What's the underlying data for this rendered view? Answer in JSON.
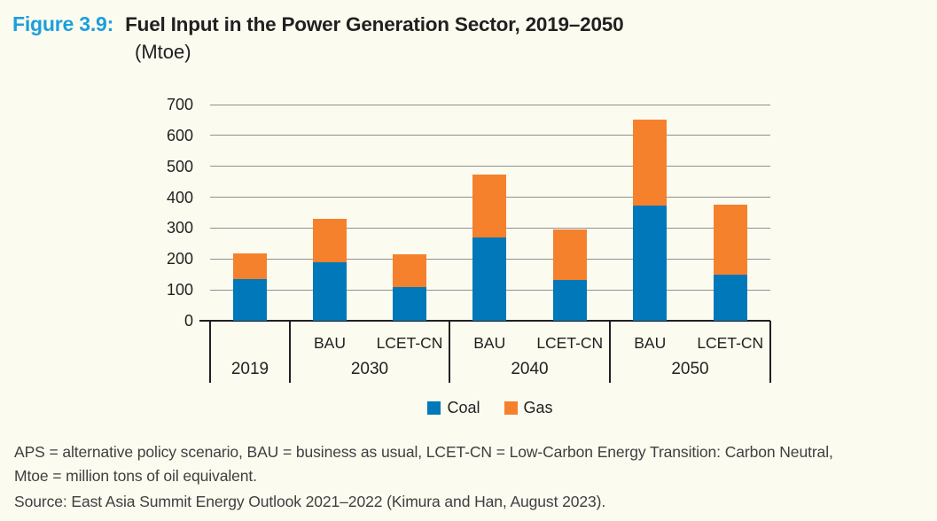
{
  "figure": {
    "label": "Figure 3.9:",
    "title": "Fuel Input in the Power Generation Sector, 2019–2050",
    "subtitle": "(Mtoe)"
  },
  "chart_data": {
    "type": "bar",
    "stacked": true,
    "title": "Fuel Input in the Power Generation Sector, 2019–2050 (Mtoe)",
    "xlabel": "",
    "ylabel": "Mtoe",
    "ylim": [
      0,
      700
    ],
    "yticks": [
      0,
      100,
      200,
      300,
      400,
      500,
      600,
      700
    ],
    "grid": true,
    "legend_position": "bottom",
    "legend": [
      {
        "name": "Coal",
        "color": "#0078b9"
      },
      {
        "name": "Gas",
        "color": "#f5812c"
      }
    ],
    "groups": [
      {
        "year": "2019",
        "bars": [
          {
            "scenario": "",
            "coal": 135,
            "gas": 82,
            "total": 217
          }
        ]
      },
      {
        "year": "2030",
        "bars": [
          {
            "scenario": "BAU",
            "coal": 188,
            "gas": 142,
            "total": 330
          },
          {
            "scenario": "LCET-CN",
            "coal": 110,
            "gas": 105,
            "total": 215
          }
        ]
      },
      {
        "year": "2040",
        "bars": [
          {
            "scenario": "BAU",
            "coal": 270,
            "gas": 202,
            "total": 472
          },
          {
            "scenario": "LCET-CN",
            "coal": 132,
            "gas": 163,
            "total": 295
          }
        ]
      },
      {
        "year": "2050",
        "bars": [
          {
            "scenario": "BAU",
            "coal": 372,
            "gas": 278,
            "total": 650
          },
          {
            "scenario": "LCET-CN",
            "coal": 150,
            "gas": 225,
            "total": 375
          }
        ]
      }
    ]
  },
  "footnotes": {
    "line1": "APS = alternative policy scenario, BAU = business as usual, LCET-CN = Low-Carbon Energy Transition: Carbon Neutral,",
    "line2": "Mtoe = million tons of oil equivalent.",
    "source": "Source: East Asia Summit Energy Outlook 2021–2022 (Kimura and Han, August 2023)."
  },
  "colors": {
    "coal": "#0078b9",
    "gas": "#f5812c",
    "accent_blue": "#1c9fdb",
    "text_dark": "#231f20",
    "footnote_text": "#3f3f41",
    "background": "#fbfbef",
    "gridline": "#8f9194"
  }
}
